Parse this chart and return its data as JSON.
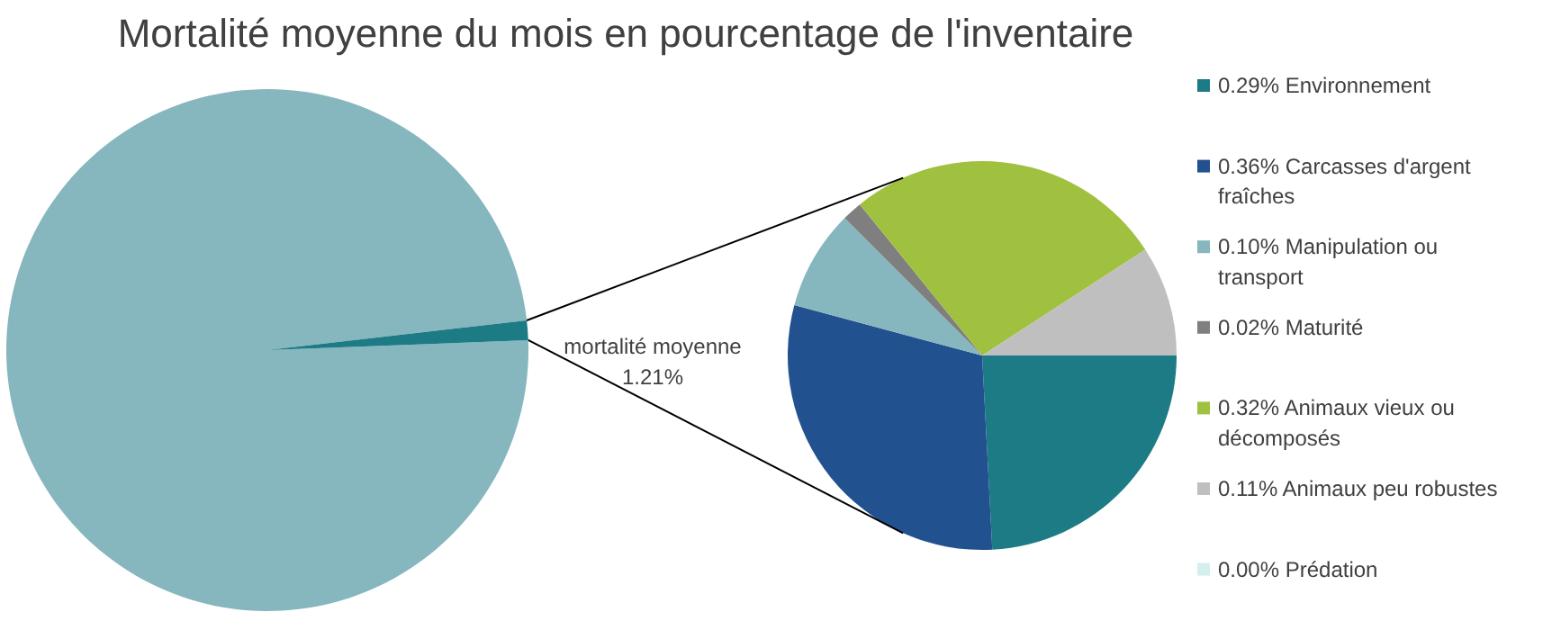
{
  "chart_data": [
    {
      "type": "pie",
      "title": "Mortalité moyenne du mois en pourcentage de l'inventaire",
      "categories": [
        null,
        "mortalité moyenne"
      ],
      "values": [
        98.79,
        1.21
      ],
      "colors": [
        "#86b6be",
        "#1d7b85"
      ],
      "value_labels": [
        null,
        "1.21%"
      ]
    },
    {
      "type": "pie",
      "categories": [
        "Environnement",
        "Carcasses d'argent fraîches",
        "Manipulation ou transport",
        "Maturité",
        "Animaux vieux ou décomposés",
        "Animaux peu robustes",
        "Prédation"
      ],
      "values": [
        0.29,
        0.36,
        0.1,
        0.02,
        0.32,
        0.11,
        0.0
      ],
      "colors": [
        "#1d7b85",
        "#22518f",
        "#86b6be",
        "#7f7f7f",
        "#a0c040",
        "#bfbfbf",
        "#d5eeee"
      ],
      "value_labels": [
        "0.29%",
        "0.36%",
        "0.10%",
        "0.02%",
        "0.32%",
        "0.11%",
        "0.00%"
      ],
      "legend": "right"
    }
  ]
}
